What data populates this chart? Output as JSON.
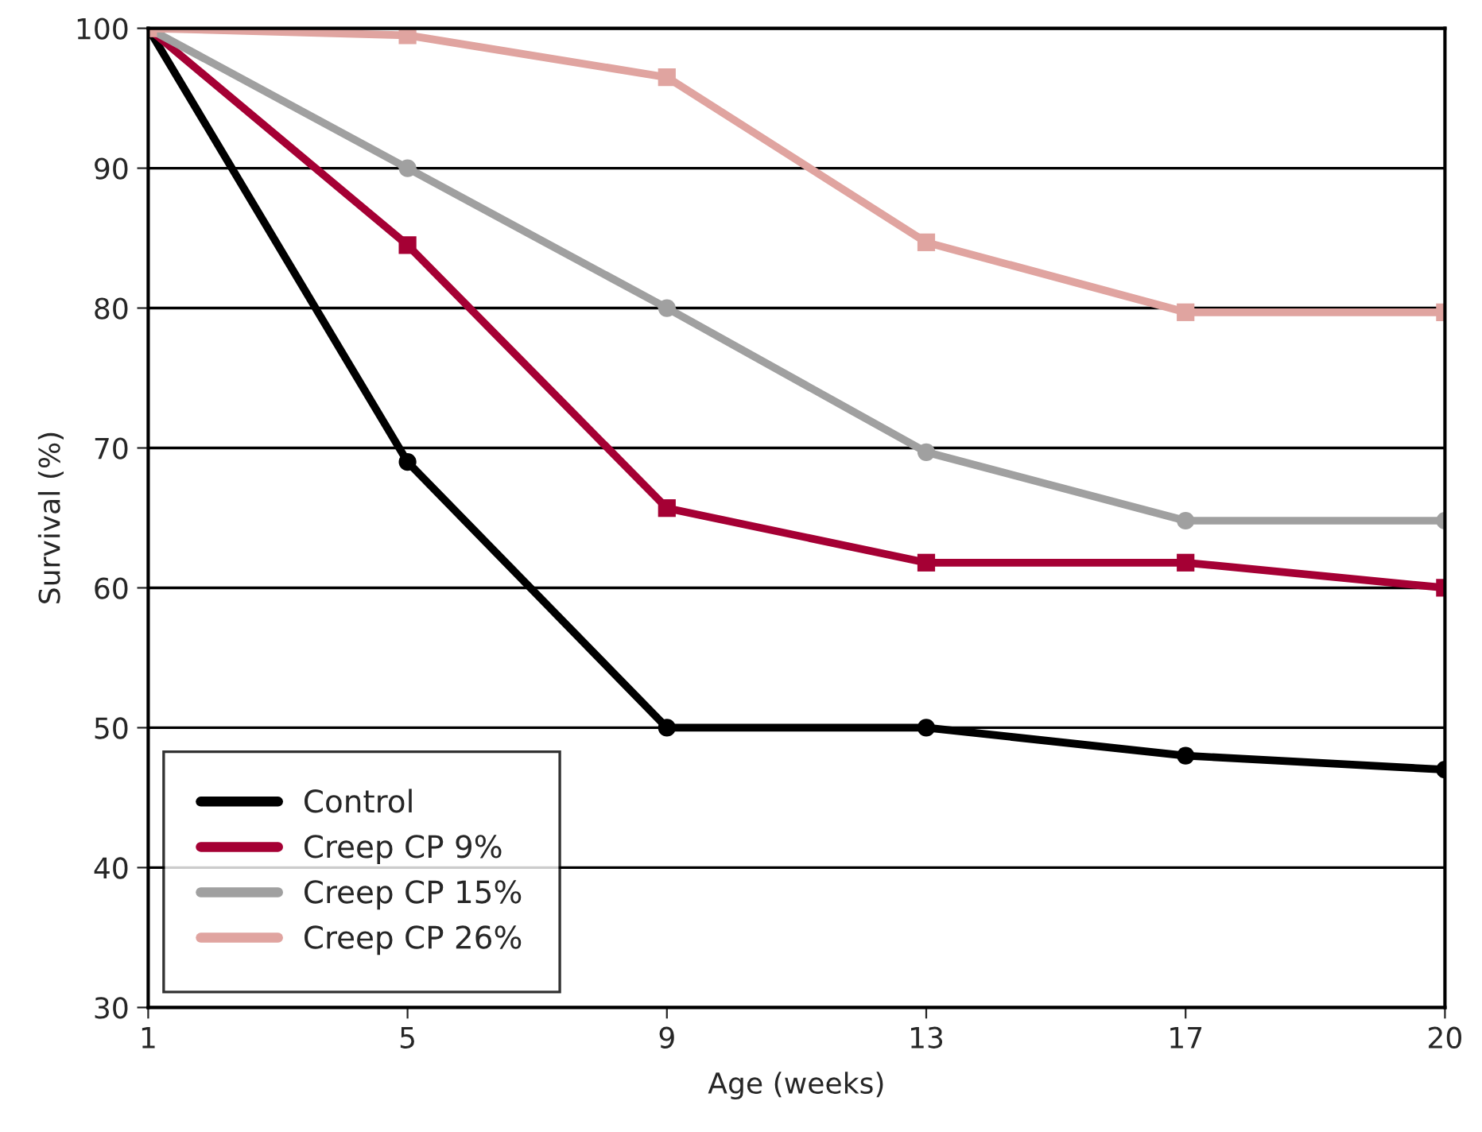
{
  "chart_data": {
    "type": "line",
    "xlabel": "Age (weeks)",
    "ylabel": "Survival (%)",
    "categories": [
      "1",
      "5",
      "9",
      "13",
      "17",
      "20"
    ],
    "series": [
      {
        "name": "Control",
        "color": "#000000",
        "marker": "circle",
        "values": [
          100,
          69,
          50,
          50,
          48,
          47
        ]
      },
      {
        "name": "Creep CP 9%",
        "color": "#a50034",
        "marker": "square",
        "values": [
          100,
          84.5,
          65.7,
          61.8,
          61.8,
          60
        ]
      },
      {
        "name": "Creep CP 15%",
        "color": "#a0a0a0",
        "marker": "circle",
        "values": [
          100,
          90,
          80,
          69.7,
          64.8,
          64.8
        ]
      },
      {
        "name": "Creep CP 26%",
        "color": "#e0a4a0",
        "marker": "square",
        "values": [
          100,
          99.5,
          96.5,
          84.7,
          79.7,
          79.7
        ]
      }
    ],
    "ylim": [
      30,
      100
    ],
    "yticks": [
      30,
      40,
      50,
      60,
      70,
      80,
      90,
      100
    ],
    "grid": "y",
    "legend": "bottom left",
    "line_style": "solid"
  }
}
